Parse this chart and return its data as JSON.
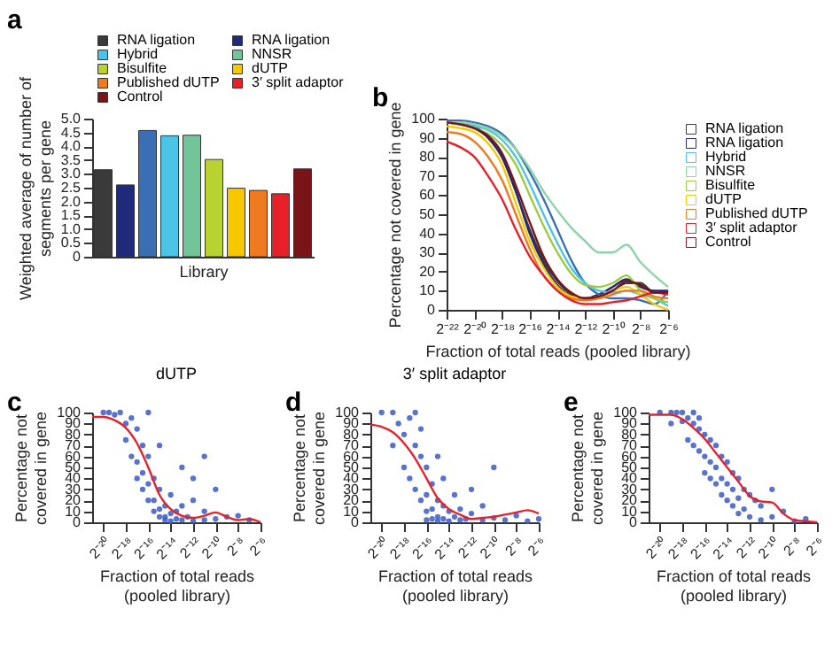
{
  "chart_data": [
    {
      "type": "bar",
      "annotations": [
        "a"
      ],
      "xlabel": "Library",
      "ylabel": "Weighted average of number of segments per gene",
      "categories": [
        null,
        null,
        null,
        null,
        null,
        null,
        null,
        null,
        null,
        null
      ],
      "ylim": [
        0,
        5
      ],
      "yticks": [
        0,
        0.5,
        {
          "value": 1,
          "label": "1.0"
        },
        1.5,
        {
          "value": 2,
          "label": "2.0"
        },
        2.5,
        {
          "value": 3,
          "label": "3.0"
        },
        3.5,
        {
          "value": 4,
          "label": "4.0"
        },
        4.5,
        {
          "value": 5,
          "label": "5.0"
        }
      ],
      "legend": "top",
      "series": [
        {
          "name": "RNA ligation",
          "color": "#3a3a3a",
          "values": [
            3.15,
            null,
            null,
            null,
            null,
            null,
            null,
            null,
            null,
            null
          ]
        },
        {
          "name": "RNA ligation",
          "color": "#1f2a7a",
          "values": [
            null,
            2.6,
            null,
            null,
            null,
            null,
            null,
            null,
            null,
            null
          ]
        },
        {
          "color": "#3a6fb5",
          "values": [
            null,
            null,
            4.57,
            null,
            null,
            null,
            null,
            null,
            null,
            null
          ]
        },
        {
          "name": "Hybrid",
          "color": "#4cc4e8",
          "values": [
            null,
            null,
            null,
            4.38,
            null,
            null,
            null,
            null,
            null,
            null
          ]
        },
        {
          "name": "NNSR",
          "color": "#74c49a",
          "values": [
            null,
            null,
            null,
            null,
            4.4,
            null,
            null,
            null,
            null,
            null
          ]
        },
        {
          "name": "Bisulfite",
          "color": "#b8d232",
          "values": [
            null,
            null,
            null,
            null,
            null,
            3.52,
            null,
            null,
            null,
            null
          ]
        },
        {
          "name": "dUTP",
          "color": "#f5c800",
          "values": [
            null,
            null,
            null,
            null,
            null,
            null,
            2.48,
            null,
            null,
            null
          ]
        },
        {
          "name": "Published dUTP",
          "color": "#f07a20",
          "values": [
            null,
            null,
            null,
            null,
            null,
            null,
            null,
            2.4,
            null,
            null
          ]
        },
        {
          "name": "3′ split adaptor",
          "color": "#e8202a",
          "values": [
            null,
            null,
            null,
            null,
            null,
            null,
            null,
            null,
            2.28,
            null
          ]
        },
        {
          "name": "Control",
          "color": "#7a1418",
          "values": [
            null,
            null,
            null,
            null,
            null,
            null,
            null,
            null,
            null,
            3.18
          ]
        }
      ]
    },
    {
      "type": "line",
      "annotations": [
        "b"
      ],
      "xlabel": "Fraction of total reads (pooled library)",
      "ylabel": "Percentage not covered in gene",
      "log": "x",
      "legend": "right",
      "xlim": [
        2.384185791015625e-07,
        0.015625
      ],
      "xticks": [
        {
          "value": 2.384185791015625e-07,
          "label": "2⁻²²"
        },
        {
          "value": 9.5367431640625e-07,
          "label": "2⁻²⁰"
        },
        {
          "value": 3.814697265625e-06,
          "label": "2⁻¹⁸"
        },
        {
          "value": 1.52587890625e-05,
          "label": "2⁻¹⁶"
        },
        {
          "value": 6.103515625e-05,
          "label": "2⁻¹⁴"
        },
        {
          "value": 0.000244140625,
          "label": "2⁻¹²"
        },
        {
          "value": 0.0009765625,
          "label": "2⁻¹⁰"
        },
        {
          "value": 0.00390625,
          "label": "2⁻⁸"
        },
        {
          "value": 0.015625,
          "label": "2⁻⁶"
        }
      ],
      "ylim": [
        0,
        100
      ],
      "yticks": [
        0,
        10,
        20,
        30,
        40,
        50,
        60,
        70,
        80,
        90,
        100
      ],
      "x": [
        2.384185791015625e-07,
        4.768e-07,
        9.537e-07,
        1.907e-06,
        3.815e-06,
        7.629e-06,
        1.526e-05,
        3.052e-05,
        6.104e-05,
        0.0001221,
        0.0002441,
        0.0004883,
        0.0009766,
        0.001953,
        0.003906,
        0.007813,
        0.015625
      ],
      "series": [
        {
          "name": "RNA ligation",
          "color": "#3a3a3a",
          "values": [
            98,
            97,
            95,
            90,
            80,
            62,
            42,
            26,
            15,
            8,
            6,
            7,
            10,
            14,
            14,
            9,
            10
          ]
        },
        {
          "name": "RNA ligation",
          "color": "#1f2a7a",
          "values": [
            99,
            98,
            96,
            90,
            80,
            62,
            40,
            24,
            13,
            7,
            6,
            8,
            12,
            16,
            12,
            10,
            10
          ]
        },
        {
          "color": "#3a6fb5",
          "values": [
            99,
            99,
            98,
            96,
            92,
            84,
            72,
            58,
            42,
            26,
            14,
            8,
            6,
            6,
            5,
            3,
            10
          ]
        },
        {
          "name": "Hybrid",
          "color": "#4cc4e8",
          "values": [
            98,
            97,
            96,
            94,
            89,
            80,
            66,
            50,
            35,
            22,
            14,
            10,
            9,
            10,
            8,
            6,
            2
          ]
        },
        {
          "name": "NNSR",
          "color": "#8fd4a8",
          "values": [
            98,
            98,
            97,
            95,
            91,
            84,
            74,
            62,
            52,
            43,
            36,
            30,
            30,
            34,
            25,
            18,
            12
          ]
        },
        {
          "name": "Bisulfite",
          "color": "#9ccc3c",
          "values": [
            98,
            97,
            95,
            92,
            86,
            76,
            60,
            44,
            30,
            19,
            13,
            12,
            14,
            18,
            10,
            6,
            4
          ]
        },
        {
          "name": "dUTP",
          "color": "#f5c800",
          "values": [
            96,
            95,
            93,
            87,
            76,
            56,
            36,
            22,
            12,
            7,
            6,
            7,
            10,
            12,
            8,
            3,
            0
          ]
        },
        {
          "name": "Published dUTP",
          "color": "#f07a20",
          "values": [
            93,
            92,
            88,
            80,
            68,
            50,
            32,
            18,
            10,
            6,
            5,
            6,
            8,
            10,
            10,
            7,
            6
          ]
        },
        {
          "name": "3′ split adaptor",
          "color": "#e8202a",
          "values": [
            88,
            85,
            80,
            70,
            58,
            42,
            28,
            18,
            10,
            5,
            3,
            3,
            4,
            5,
            7,
            9,
            8
          ]
        },
        {
          "name": "Control",
          "color": "#7a1418",
          "values": [
            98,
            97,
            95,
            91,
            82,
            65,
            46,
            28,
            16,
            9,
            6,
            7,
            10,
            15,
            13,
            9,
            9
          ]
        }
      ]
    },
    {
      "type": "scatter",
      "annotations": [
        "c"
      ],
      "title": "dUTP",
      "xlabel": "Fraction of total reads (pooled library)",
      "ylabel": "Percentage not covered in gene",
      "log": "x",
      "xlim": [
        4.76837158203125e-07,
        0.015625
      ],
      "xticks": [
        {
          "value": 9.5367431640625e-07,
          "label": "2⁻²⁰"
        },
        {
          "value": 3.814697265625e-06,
          "label": "2⁻¹⁸"
        },
        {
          "value": 1.52587890625e-05,
          "label": "2⁻¹⁶"
        },
        {
          "value": 6.103515625e-05,
          "label": "2⁻¹⁴"
        },
        {
          "value": 0.000244140625,
          "label": "2⁻¹²"
        },
        {
          "value": 0.0009765625,
          "label": "2⁻¹⁰"
        },
        {
          "value": 0.00390625,
          "label": "2⁻⁸"
        },
        {
          "value": 0.015625,
          "label": "2⁻⁶"
        }
      ],
      "ylim": [
        0,
        100
      ],
      "yticks": [
        0,
        10,
        20,
        30,
        40,
        50,
        60,
        70,
        80,
        90,
        100
      ],
      "series": [
        {
          "type": "scatter",
          "color": "#3b5bc4",
          "x": [
            9.537e-07,
            1.349e-06,
            1.907e-06,
            2.697e-06,
            3.815e-06,
            3.815e-06,
            5.395e-06,
            5.395e-06,
            7.629e-06,
            7.629e-06,
            7.629e-06,
            1.079e-05,
            1.079e-05,
            1.079e-05,
            1.526e-05,
            1.526e-05,
            1.526e-05,
            1.526e-05,
            2.158e-05,
            2.158e-05,
            2.158e-05,
            3.052e-05,
            3.052e-05,
            3.052e-05,
            3.052e-05,
            4.316e-05,
            4.316e-05,
            4.316e-05,
            6.104e-05,
            6.104e-05,
            6.104e-05,
            8.632e-05,
            8.632e-05,
            0.0001221,
            0.0001221,
            0.0001726,
            0.0002441,
            0.0002441,
            0.0004883,
            0.0004883,
            0.0009766,
            0.0009766,
            0.001953,
            0.003906,
            0.007813,
            0.0001221,
            0.0002441,
            0.0004883
          ],
          "values": [
            100,
            100,
            98,
            100,
            90,
            75,
            95,
            60,
            85,
            55,
            40,
            70,
            45,
            30,
            60,
            35,
            20,
            100,
            40,
            20,
            10,
            30,
            12,
            5,
            70,
            15,
            5,
            2,
            25,
            8,
            1,
            10,
            3,
            15,
            2,
            5,
            20,
            1,
            10,
            2,
            30,
            3,
            5,
            6,
            2,
            50,
            40,
            60
          ]
        },
        {
          "type": "line",
          "color": "#e8202a",
          "x": [
            4.76837158203125e-07,
            9.537e-07,
            1.907e-06,
            3.815e-06,
            7.629e-06,
            1.526e-05,
            3.052e-05,
            6.104e-05,
            0.0001221,
            0.0002441,
            0.0004883,
            0.0009766,
            0.001953,
            0.003906,
            0.007813,
            0.015625
          ],
          "values": [
            96,
            96,
            93,
            86,
            72,
            50,
            25,
            12,
            6,
            4,
            6,
            9,
            5,
            2,
            3,
            0
          ]
        }
      ]
    },
    {
      "type": "scatter",
      "annotations": [
        "d"
      ],
      "title": "3′ split adaptor",
      "xlabel": "Fraction of total reads (pooled library)",
      "ylabel": "Percentage not covered in gene",
      "log": "x",
      "xlim": [
        4.76837158203125e-07,
        0.015625
      ],
      "xticks": [
        {
          "value": 9.5367431640625e-07,
          "label": "2⁻²⁰"
        },
        {
          "value": 3.814697265625e-06,
          "label": "2⁻¹⁸"
        },
        {
          "value": 1.52587890625e-05,
          "label": "2⁻¹⁶"
        },
        {
          "value": 6.103515625e-05,
          "label": "2⁻¹⁴"
        },
        {
          "value": 0.000244140625,
          "label": "2⁻¹²"
        },
        {
          "value": 0.0009765625,
          "label": "2⁻¹⁰"
        },
        {
          "value": 0.00390625,
          "label": "2⁻⁸"
        },
        {
          "value": 0.015625,
          "label": "2⁻⁶"
        }
      ],
      "ylim": [
        0,
        100
      ],
      "yticks": [
        0,
        10,
        20,
        30,
        40,
        50,
        60,
        70,
        80,
        90,
        100
      ],
      "series": [
        {
          "type": "scatter",
          "color": "#3b5bc4",
          "x": [
            9.537e-07,
            1.907e-06,
            1.907e-06,
            2.697e-06,
            3.815e-06,
            3.815e-06,
            5.395e-06,
            5.395e-06,
            7.629e-06,
            7.629e-06,
            7.629e-06,
            1.079e-05,
            1.079e-05,
            1.079e-05,
            1.526e-05,
            1.526e-05,
            1.526e-05,
            1.526e-05,
            2.158e-05,
            2.158e-05,
            2.158e-05,
            3.052e-05,
            3.052e-05,
            3.052e-05,
            3.052e-05,
            4.316e-05,
            4.316e-05,
            4.316e-05,
            6.104e-05,
            6.104e-05,
            8.632e-05,
            8.632e-05,
            0.0001221,
            0.0001221,
            0.0001726,
            0.0002441,
            0.0002441,
            0.0004883,
            0.0004883,
            0.0009766,
            0.0009766,
            0.001953,
            0.003906,
            0.007813,
            0.015625
          ],
          "values": [
            100,
            100,
            70,
            90,
            80,
            50,
            95,
            40,
            70,
            30,
            100,
            60,
            20,
            85,
            50,
            25,
            10,
            2,
            35,
            12,
            3,
            60,
            20,
            5,
            1,
            15,
            3,
            40,
            10,
            1,
            5,
            25,
            2,
            12,
            3,
            8,
            30,
            2,
            15,
            4,
            50,
            2,
            6,
            1,
            3
          ]
        },
        {
          "type": "line",
          "color": "#e8202a",
          "x": [
            4.76837158203125e-07,
            9.537e-07,
            1.907e-06,
            3.815e-06,
            7.629e-06,
            1.526e-05,
            3.052e-05,
            6.104e-05,
            0.0001221,
            0.0002441,
            0.0004883,
            0.0009766,
            0.001953,
            0.003906,
            0.007813,
            0.015625
          ],
          "values": [
            89,
            87,
            82,
            72,
            58,
            40,
            22,
            12,
            7,
            3,
            4,
            5,
            7,
            9,
            11,
            8
          ]
        }
      ]
    },
    {
      "type": "scatter",
      "annotations": [
        "e"
      ],
      "xlabel": "Fraction of total reads (pooled library)",
      "ylabel": "Percentage not covered in gene",
      "log": "x",
      "xlim": [
        4.76837158203125e-07,
        0.015625
      ],
      "xticks": [
        {
          "value": 9.5367431640625e-07,
          "label": "2⁻²⁰"
        },
        {
          "value": 3.814697265625e-06,
          "label": "2⁻¹⁸"
        },
        {
          "value": 1.52587890625e-05,
          "label": "2⁻¹⁶"
        },
        {
          "value": 6.103515625e-05,
          "label": "2⁻¹⁴"
        },
        {
          "value": 0.000244140625,
          "label": "2⁻¹²"
        },
        {
          "value": 0.0009765625,
          "label": "2⁻¹⁰"
        },
        {
          "value": 0.00390625,
          "label": "2⁻⁸"
        },
        {
          "value": 0.015625,
          "label": "2⁻⁶"
        }
      ],
      "ylim": [
        0,
        100
      ],
      "yticks": [
        0,
        10,
        20,
        30,
        40,
        50,
        60,
        70,
        80,
        90,
        100
      ],
      "series": [
        {
          "type": "scatter",
          "color": "#3b5bc4",
          "x": [
            9.537e-07,
            1.907e-06,
            1.907e-06,
            2.697e-06,
            3.815e-06,
            3.815e-06,
            5.395e-06,
            5.395e-06,
            7.629e-06,
            7.629e-06,
            7.629e-06,
            1.079e-05,
            1.079e-05,
            1.079e-05,
            1.526e-05,
            1.526e-05,
            1.526e-05,
            2.158e-05,
            2.158e-05,
            2.158e-05,
            3.052e-05,
            3.052e-05,
            3.052e-05,
            4.316e-05,
            4.316e-05,
            4.316e-05,
            6.104e-05,
            6.104e-05,
            6.104e-05,
            8.632e-05,
            8.632e-05,
            8.632e-05,
            0.0001221,
            0.0001221,
            0.0001221,
            0.0001726,
            0.0001726,
            0.0002441,
            0.0002441,
            0.0003453,
            0.0004883,
            0.0004883,
            0.0009766,
            0.0009766,
            0.001953,
            0.003906,
            0.007813
          ],
          "values": [
            100,
            100,
            90,
            100,
            92,
            100,
            95,
            75,
            90,
            70,
            100,
            85,
            65,
            95,
            80,
            60,
            45,
            75,
            55,
            40,
            70,
            50,
            35,
            60,
            40,
            25,
            55,
            35,
            20,
            45,
            30,
            15,
            40,
            22,
            8,
            30,
            12,
            25,
            5,
            20,
            15,
            2,
            30,
            5,
            10,
            1,
            3
          ]
        },
        {
          "type": "line",
          "color": "#e8202a",
          "x": [
            4.76837158203125e-07,
            9.537e-07,
            1.907e-06,
            3.815e-06,
            7.629e-06,
            1.526e-05,
            3.052e-05,
            6.104e-05,
            0.0001221,
            0.0002441,
            0.0004883,
            0.0009766,
            0.001953,
            0.003906,
            0.007813,
            0.015625
          ],
          "values": [
            98,
            98,
            98,
            94,
            86,
            76,
            63,
            50,
            37,
            24,
            19,
            18,
            8,
            2,
            1,
            0
          ]
        }
      ]
    }
  ]
}
